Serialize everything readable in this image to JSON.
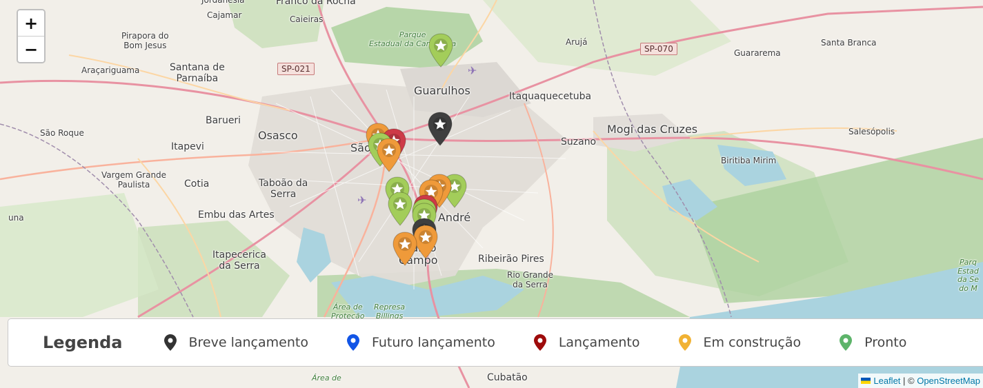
{
  "zoom": {
    "in_label": "+",
    "out_label": "−"
  },
  "places": [
    {
      "id": "jordanesia",
      "text": "Jordanésia",
      "cls": "small"
    },
    {
      "id": "franco-rocha",
      "text": "Franco da Rocha",
      "cls": "mid"
    },
    {
      "id": "cajamar",
      "text": "Cajamar",
      "cls": "small"
    },
    {
      "id": "caieiras",
      "text": "Caieiras",
      "cls": "small"
    },
    {
      "id": "pirapora",
      "text": "Pirapora do\nBom Jesus",
      "cls": "small"
    },
    {
      "id": "aracariguama",
      "text": "Araçariguama",
      "cls": "small"
    },
    {
      "id": "santana-parnaiba",
      "text": "Santana de\nParnaíba",
      "cls": "mid"
    },
    {
      "id": "parque-cantareira",
      "text": "Parque\nEstadual da Cantareira",
      "cls": "park"
    },
    {
      "id": "aruja",
      "text": "Arujá",
      "cls": "small"
    },
    {
      "id": "guararema",
      "text": "Guararema",
      "cls": "small"
    },
    {
      "id": "santa-branca",
      "text": "Santa Branca",
      "cls": "small"
    },
    {
      "id": "guarulhos",
      "text": "Guarulhos",
      "cls": "big"
    },
    {
      "id": "itaquaquecetuba",
      "text": "Itaquaquecetuba",
      "cls": "mid"
    },
    {
      "id": "barueri",
      "text": "Barueri",
      "cls": "mid"
    },
    {
      "id": "osasco",
      "text": "Osasco",
      "cls": "big"
    },
    {
      "id": "sao-paulo",
      "text": "São",
      "cls": "big"
    },
    {
      "id": "mogi",
      "text": "Mogi das Cruzes",
      "cls": "big"
    },
    {
      "id": "salesopolis",
      "text": "Salesópolis",
      "cls": "small"
    },
    {
      "id": "sao-roque",
      "text": "São Roque",
      "cls": "small"
    },
    {
      "id": "itapevi",
      "text": "Itapevi",
      "cls": "mid"
    },
    {
      "id": "suzano",
      "text": "Suzano",
      "cls": "mid"
    },
    {
      "id": "biritiba",
      "text": "Biritiba Mirim",
      "cls": "small"
    },
    {
      "id": "vargem",
      "text": "Vargem Grande\nPaulista",
      "cls": "small"
    },
    {
      "id": "cotia",
      "text": "Cotia",
      "cls": "mid"
    },
    {
      "id": "taboao",
      "text": "Taboão da\nSerra",
      "cls": "mid"
    },
    {
      "id": "embu",
      "text": "Embu das Artes",
      "cls": "mid"
    },
    {
      "id": "santo-andre",
      "text": "o André",
      "cls": "big"
    },
    {
      "id": "sao-bernardo",
      "text": "rnardo\nCampo",
      "cls": "big"
    },
    {
      "id": "ribeirao",
      "text": "Ribeirão Pires",
      "cls": "mid"
    },
    {
      "id": "rio-grande",
      "text": "Rio Grande\nda Serra",
      "cls": "small"
    },
    {
      "id": "itapecerica",
      "text": "Itapecerica\nda Serra",
      "cls": "mid"
    },
    {
      "id": "area-protecao",
      "text": "Área de\nProteção",
      "cls": "park"
    },
    {
      "id": "represa",
      "text": "Represa\nBillings",
      "cls": "park"
    },
    {
      "id": "parque-serra",
      "text": "Parq\nEstad\nda Se\ndo M",
      "cls": "park"
    },
    {
      "id": "area-de",
      "text": "Área de",
      "cls": "park"
    },
    {
      "id": "cubatao",
      "text": "Cubatão",
      "cls": "mid"
    },
    {
      "id": "una",
      "text": "una",
      "cls": "small"
    }
  ],
  "shields": [
    {
      "id": "sp-021",
      "text": "SP-021"
    },
    {
      "id": "sp-070",
      "text": "SP-070"
    }
  ],
  "markers": [
    {
      "id": "m1",
      "status": "pronto"
    },
    {
      "id": "m2",
      "status": "breve"
    },
    {
      "id": "m3",
      "status": "construcao"
    },
    {
      "id": "m4",
      "status": "lancamento"
    },
    {
      "id": "m5",
      "status": "pronto"
    },
    {
      "id": "m6",
      "status": "construcao"
    },
    {
      "id": "m7",
      "status": "pronto"
    },
    {
      "id": "m8",
      "status": "pronto"
    },
    {
      "id": "m9",
      "status": "construcao"
    },
    {
      "id": "m10",
      "status": "construcao"
    },
    {
      "id": "m11",
      "status": "pronto"
    },
    {
      "id": "m12",
      "status": "lancamento"
    },
    {
      "id": "m13",
      "status": "pronto"
    },
    {
      "id": "m14",
      "status": "pronto"
    },
    {
      "id": "m15",
      "status": "breve"
    },
    {
      "id": "m16",
      "status": "construcao"
    },
    {
      "id": "m17",
      "status": "construcao"
    }
  ],
  "status_colors": {
    "breve": "#3f3f3f",
    "futuro": "#2a7fde",
    "lancamento": "#cd3a47",
    "construcao": "#ef9a3a",
    "pronto": "#a3cd5a"
  },
  "legend": {
    "title": "Legenda",
    "items": [
      {
        "key": "breve",
        "label": "Breve lançamento",
        "color": "#333333",
        "icon": "map-pin-icon"
      },
      {
        "key": "futuro",
        "label": "Futuro lançamento",
        "color": "#1255e6",
        "icon": "map-pin-icon"
      },
      {
        "key": "lancamento",
        "label": "Lançamento",
        "color": "#9e0b0b",
        "icon": "map-pin-icon"
      },
      {
        "key": "construcao",
        "label": "Em construção",
        "color": "#f1b233",
        "icon": "map-pin-icon"
      },
      {
        "key": "pronto",
        "label": "Pronto",
        "color": "#5db46a",
        "icon": "map-pin-icon"
      }
    ]
  },
  "attribution": {
    "leaflet": "Leaflet",
    "separator": " | © ",
    "osm": "OpenStreetMap"
  }
}
